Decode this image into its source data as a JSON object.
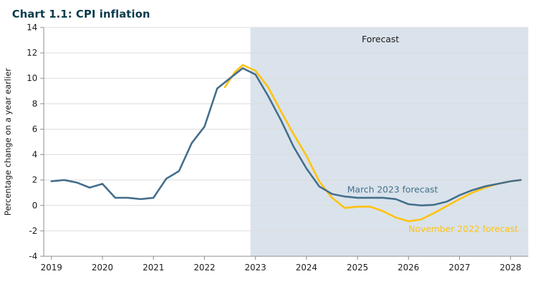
{
  "colors": {
    "title_text": "#0B3B4D",
    "forecast_shading": "#DAE3EB",
    "axis": "#8C8C8C",
    "grid": "#DCDCDC",
    "tick_text": "#1A1A1A",
    "annotation_text": "#1A1A1A"
  },
  "chart_data": {
    "type": "line",
    "title": "Chart 1.1: CPI inflation",
    "ylabel": "Percentage change on a year earlier",
    "xlabel": "",
    "ylim": [
      -4,
      14
    ],
    "ytick_step": 2,
    "xlim": [
      2018.85,
      2028.35
    ],
    "xticks": [
      2019,
      2020,
      2021,
      2022,
      2023,
      2024,
      2025,
      2026,
      2027,
      2028
    ],
    "grid": true,
    "legend": "inline-labels",
    "forecast_region": {
      "start": 2022.9,
      "label": "Forecast"
    },
    "series": [
      {
        "name": "November 2022 forecast",
        "color": "#FFC20E",
        "x": [
          2022.4,
          2022.6,
          2022.75,
          2023.0,
          2023.25,
          2023.5,
          2023.75,
          2024.0,
          2024.25,
          2024.5,
          2024.75,
          2025.0,
          2025.25,
          2025.5,
          2025.75,
          2026.0,
          2026.25,
          2026.5,
          2026.75,
          2027.0,
          2027.25,
          2027.5,
          2027.75,
          2028.0,
          2028.2
        ],
        "y": [
          9.3,
          10.5,
          11.05,
          10.6,
          9.3,
          7.4,
          5.6,
          3.9,
          1.9,
          0.6,
          -0.2,
          -0.1,
          -0.1,
          -0.45,
          -0.95,
          -1.25,
          -1.1,
          -0.6,
          -0.05,
          0.5,
          1.0,
          1.4,
          1.7,
          1.9,
          2.0
        ]
      },
      {
        "name": "March 2023 forecast",
        "color": "#446E8C",
        "x": [
          2019.0,
          2019.25,
          2019.5,
          2019.75,
          2020.0,
          2020.25,
          2020.5,
          2020.75,
          2021.0,
          2021.25,
          2021.5,
          2021.75,
          2022.0,
          2022.25,
          2022.5,
          2022.75,
          2023.0,
          2023.25,
          2023.5,
          2023.75,
          2024.0,
          2024.25,
          2024.5,
          2024.75,
          2025.0,
          2025.25,
          2025.5,
          2025.75,
          2026.0,
          2026.25,
          2026.5,
          2026.75,
          2027.0,
          2027.25,
          2027.5,
          2027.75,
          2028.0,
          2028.2
        ],
        "y": [
          1.9,
          2.0,
          1.8,
          1.4,
          1.7,
          0.6,
          0.6,
          0.5,
          0.6,
          2.1,
          2.7,
          4.9,
          6.2,
          9.2,
          10.0,
          10.8,
          10.3,
          8.6,
          6.7,
          4.6,
          2.9,
          1.5,
          0.9,
          0.7,
          0.6,
          0.6,
          0.6,
          0.5,
          0.1,
          0.0,
          0.05,
          0.3,
          0.8,
          1.2,
          1.5,
          1.7,
          1.9,
          2.0
        ]
      }
    ]
  }
}
